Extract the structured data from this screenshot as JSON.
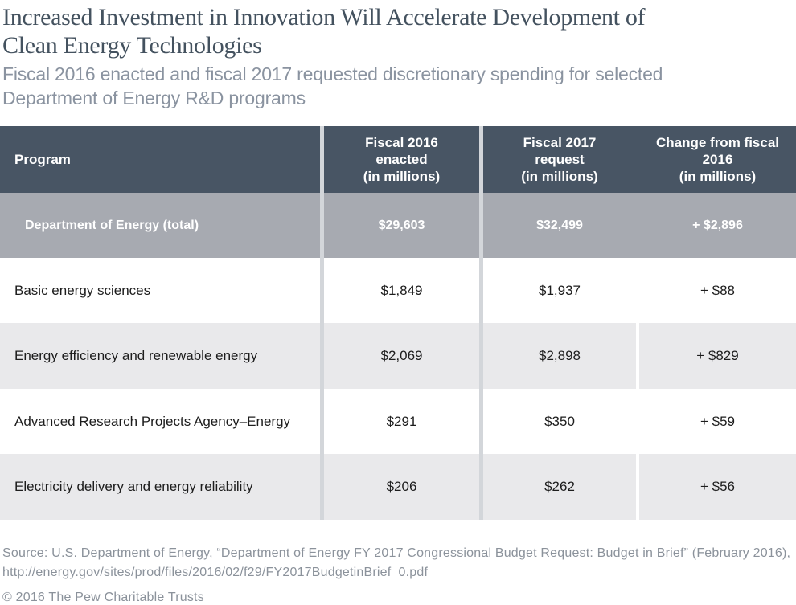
{
  "page": {
    "title": "Increased Investment in Innovation Will Accelerate Development of\nClean Energy Technologies",
    "subtitle": "Fiscal 2016 enacted and fiscal 2017 requested discretionary spending for selected\nDepartment of Energy R&D programs",
    "source": "Source: U.S. Department of Energy, “Department of Energy FY 2017 Congressional Budget Request: Budget in Brief” (February 2016),\nhttp://energy.gov/sites/prod/files/2016/02/f29/FY2017BudgetinBrief_0.pdf",
    "copyright": "© 2016 The Pew Charitable Trusts"
  },
  "colors": {
    "header_bg": "#485564",
    "total_row_bg": "#a7aab1",
    "alt_row_bg": "#e9e9eb",
    "column_divider": "#d3d6da",
    "title_text": "#44525f",
    "subtitle_text": "#8a93a0",
    "footer_text": "#8b929b",
    "header_text": "#ffffff",
    "body_text": "#1d1d1d"
  },
  "chart_data": {
    "type": "table",
    "title": "Increased Investment in Innovation Will Accelerate Development of Clean Energy Technologies",
    "subtitle": "Fiscal 2016 enacted and fiscal 2017 requested discretionary spending for selected Department of Energy R&D programs",
    "columns": [
      "Program",
      "Fiscal 2016 enacted (in millions)",
      "Fiscal 2017 request (in millions)",
      "Change from fiscal 2016 (in millions)"
    ],
    "column_labels_display": [
      "Program",
      "Fiscal 2016\nenacted\n(in millions)",
      "Fiscal 2017\nrequest\n(in millions)",
      "Change from fiscal\n2016\n(in millions)"
    ],
    "rows": [
      {
        "program": "Department of Energy (total)",
        "fy2016_enacted": "$29,603",
        "fy2017_request": "$32,499",
        "change_from_2016": "+ $2,896",
        "is_total": true
      },
      {
        "program": "Basic energy sciences",
        "fy2016_enacted": "$1,849",
        "fy2017_request": "$1,937",
        "change_from_2016": "+ $88",
        "is_total": false
      },
      {
        "program": "Energy efficiency and renewable energy",
        "fy2016_enacted": "$2,069",
        "fy2017_request": "$2,898",
        "change_from_2016": "+ $829",
        "is_total": false
      },
      {
        "program": "Advanced Research Projects Agency–Energy",
        "fy2016_enacted": "$291",
        "fy2017_request": "$350",
        "change_from_2016": "+ $59",
        "is_total": false
      },
      {
        "program": "Electricity delivery and energy reliability",
        "fy2016_enacted": "$206",
        "fy2017_request": "$262",
        "change_from_2016": "+ $56",
        "is_total": false
      }
    ],
    "values_numeric_millions": {
      "fy2016_enacted": [
        29603,
        1849,
        2069,
        291,
        206
      ],
      "fy2017_request": [
        32499,
        1937,
        2898,
        350,
        262
      ],
      "change_from_2016": [
        2896,
        88,
        829,
        59,
        56
      ]
    },
    "source": "Source: U.S. Department of Energy, “Department of Energy FY 2017 Congressional Budget Request: Budget in Brief” (February 2016), http://energy.gov/sites/prod/files/2016/02/f29/FY2017BudgetinBrief_0.pdf",
    "copyright": "© 2016 The Pew Charitable Trusts"
  }
}
